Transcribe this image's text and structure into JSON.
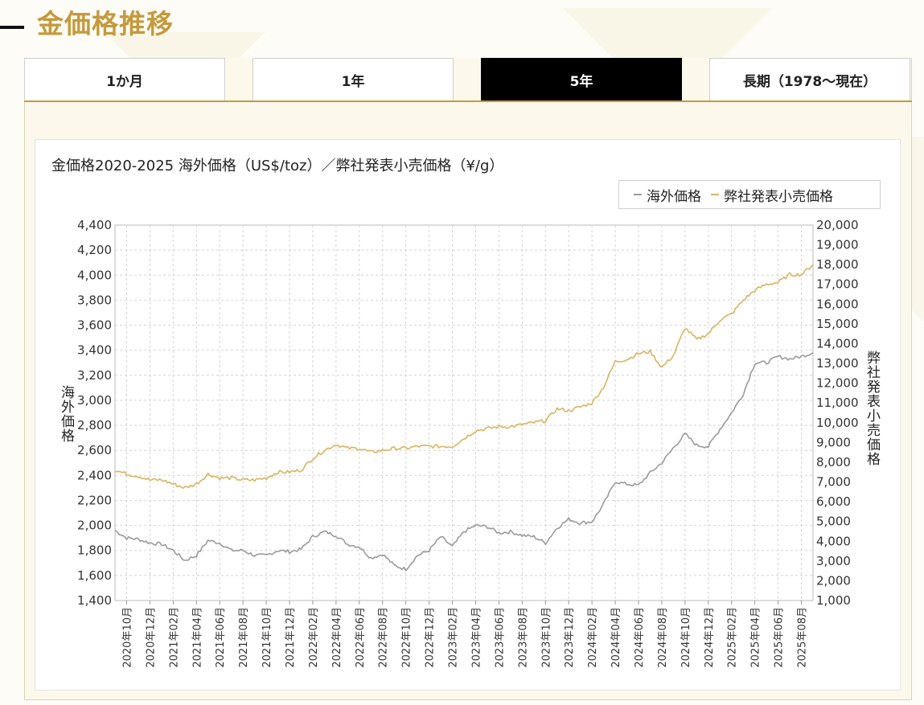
{
  "page": {
    "title": "金価格推移"
  },
  "tabs": [
    {
      "label": "1か月",
      "active": false
    },
    {
      "label": "1年",
      "active": false
    },
    {
      "label": "5年",
      "active": true
    },
    {
      "label": "長期（1978〜現在）",
      "active": false
    }
  ],
  "colors": {
    "accent": "#c59a3c",
    "overseas": "#9a9a9a",
    "retail": "#d9b460",
    "grid": "#cccccc"
  },
  "chart_data": {
    "type": "line",
    "title": "金価格2020-2025 海外価格（US$/toz）／弊社発表小売価格（¥/g）",
    "legend_position": "top-right",
    "grid": true,
    "y_left": {
      "label": "海外価格",
      "range": [
        1400,
        4400
      ],
      "ticks": [
        "1,400",
        "1,600",
        "1,800",
        "2,000",
        "2,200",
        "2,400",
        "2,600",
        "2,800",
        "3,000",
        "3,200",
        "3,400",
        "3,600",
        "3,800",
        "4,000",
        "4,200",
        "4,400"
      ]
    },
    "y_right": {
      "label": "弊社発表小売価格",
      "range": [
        1000,
        20000
      ],
      "ticks": [
        "1,000",
        "2,000",
        "3,000",
        "4,000",
        "5,000",
        "6,000",
        "7,000",
        "8,000",
        "9,000",
        "10,000",
        "11,000",
        "12,000",
        "13,000",
        "14,000",
        "15,000",
        "16,000",
        "17,000",
        "18,000",
        "19,000",
        "20,000"
      ]
    },
    "x_axis": {
      "range": [
        "2020-09",
        "2025-09"
      ],
      "tick_labels": [
        "2020年10月",
        "2020年12月",
        "2021年02月",
        "2021年04月",
        "2021年06月",
        "2021年08月",
        "2021年10月",
        "2021年12月",
        "2022年02月",
        "2022年04月",
        "2022年06月",
        "2022年08月",
        "2022年10月",
        "2022年12月",
        "2023年02月",
        "2023年04月",
        "2023年06月",
        "2023年08月",
        "2023年10月",
        "2023年12月",
        "2024年02月",
        "2024年04月",
        "2024年06月",
        "2024年08月",
        "2024年10月",
        "2024年12月",
        "2025年02月",
        "2025年04月",
        "2025年06月",
        "2025年08月"
      ]
    },
    "x": [
      "2020-09",
      "2020-10",
      "2020-11",
      "2020-12",
      "2021-01",
      "2021-02",
      "2021-03",
      "2021-04",
      "2021-05",
      "2021-06",
      "2021-07",
      "2021-08",
      "2021-09",
      "2021-10",
      "2021-11",
      "2021-12",
      "2022-01",
      "2022-02",
      "2022-03",
      "2022-04",
      "2022-05",
      "2022-06",
      "2022-07",
      "2022-08",
      "2022-09",
      "2022-10",
      "2022-11",
      "2022-12",
      "2023-01",
      "2023-02",
      "2023-03",
      "2023-04",
      "2023-05",
      "2023-06",
      "2023-07",
      "2023-08",
      "2023-09",
      "2023-10",
      "2023-11",
      "2023-12",
      "2024-01",
      "2024-02",
      "2024-03",
      "2024-04",
      "2024-05",
      "2024-06",
      "2024-07",
      "2024-08",
      "2024-09",
      "2024-10",
      "2024-11",
      "2024-12",
      "2025-01",
      "2025-02",
      "2025-03",
      "2025-04",
      "2025-05",
      "2025-06",
      "2025-07",
      "2025-08",
      "2025-09"
    ],
    "series": [
      {
        "name": "海外価格",
        "axis": "left",
        "color": "#9a9a9a",
        "values": [
          1960,
          1900,
          1890,
          1860,
          1850,
          1800,
          1720,
          1760,
          1880,
          1860,
          1800,
          1800,
          1760,
          1760,
          1800,
          1790,
          1810,
          1910,
          1950,
          1920,
          1850,
          1830,
          1740,
          1770,
          1680,
          1650,
          1760,
          1800,
          1910,
          1830,
          1950,
          2000,
          1990,
          1940,
          1950,
          1920,
          1910,
          1860,
          1980,
          2050,
          2020,
          2030,
          2170,
          2350,
          2330,
          2320,
          2420,
          2500,
          2620,
          2730,
          2640,
          2630,
          2770,
          2900,
          3050,
          3300,
          3300,
          3350,
          3330,
          3350,
          3380
        ]
      },
      {
        "name": "弊社発表小売価格",
        "axis": "right",
        "color": "#d9b460",
        "values": [
          7600,
          7400,
          7300,
          7100,
          7100,
          6900,
          6700,
          6900,
          7400,
          7200,
          7200,
          7100,
          7100,
          7200,
          7500,
          7500,
          7600,
          8200,
          8600,
          8900,
          8700,
          8700,
          8500,
          8600,
          8700,
          8700,
          8800,
          8800,
          8800,
          8800,
          9200,
          9600,
          9700,
          9800,
          9800,
          9900,
          10000,
          10100,
          10700,
          10600,
          10800,
          11000,
          11800,
          13100,
          13200,
          13500,
          13600,
          12800,
          13400,
          14800,
          14200,
          14500,
          15200,
          15500,
          16200,
          16700,
          17000,
          17100,
          17500,
          17500,
          18000
        ]
      }
    ]
  }
}
